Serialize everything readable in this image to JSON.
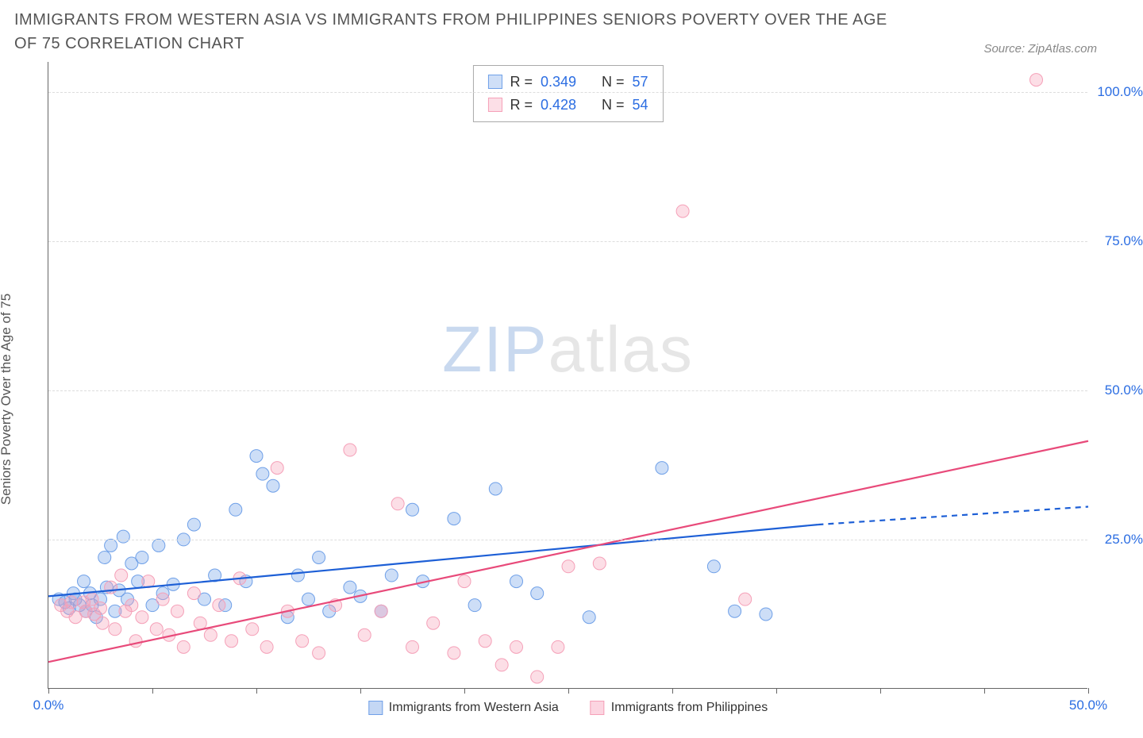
{
  "title": "IMMIGRANTS FROM WESTERN ASIA VS IMMIGRANTS FROM PHILIPPINES SENIORS POVERTY OVER THE AGE OF 75 CORRELATION CHART",
  "source": "Source: ZipAtlas.com",
  "watermark": {
    "zip": "ZIP",
    "atlas": "atlas"
  },
  "chart": {
    "type": "scatter",
    "background_color": "#ffffff",
    "grid_color": "#dddddd",
    "axis_color": "#666666",
    "tick_label_color": "#2b6de2",
    "ylabel": "Seniors Poverty Over the Age of 75",
    "ylabel_fontsize": 17,
    "xlim": [
      0,
      50
    ],
    "ylim": [
      0,
      105
    ],
    "xtick_positions": [
      0,
      5,
      10,
      15,
      20,
      25,
      30,
      35,
      40,
      45,
      50
    ],
    "xtick_labels": {
      "0": "0.0%",
      "50": "50.0%"
    },
    "ytick_positions": [
      25,
      50,
      75,
      100
    ],
    "ytick_labels": {
      "25": "25.0%",
      "50": "50.0%",
      "75": "75.0%",
      "100": "100.0%"
    },
    "marker_radius": 8,
    "marker_fill_opacity": 0.35,
    "marker_stroke_width": 1,
    "trend_line_width": 2.2,
    "series": [
      {
        "key": "western_asia",
        "label": "Immigrants from Western Asia",
        "color": "#6fa0e8",
        "line_color": "#1d5fd6",
        "R": "0.349",
        "N": "57",
        "trend": {
          "x1": 0,
          "y1": 15.5,
          "x2": 37,
          "y2": 27.5,
          "dash_start_x": 37,
          "dash_end_x": 50,
          "dash_end_y": 30.5
        },
        "points": [
          [
            0.5,
            15
          ],
          [
            0.8,
            14.5
          ],
          [
            1.0,
            13.5
          ],
          [
            1.2,
            16
          ],
          [
            1.3,
            15
          ],
          [
            1.5,
            14
          ],
          [
            1.7,
            18
          ],
          [
            1.8,
            13
          ],
          [
            2.0,
            16
          ],
          [
            2.1,
            14
          ],
          [
            2.3,
            12
          ],
          [
            2.5,
            15
          ],
          [
            2.7,
            22
          ],
          [
            2.8,
            17
          ],
          [
            3.0,
            24
          ],
          [
            3.2,
            13
          ],
          [
            3.4,
            16.5
          ],
          [
            3.6,
            25.5
          ],
          [
            3.8,
            15
          ],
          [
            4.0,
            21
          ],
          [
            4.3,
            18
          ],
          [
            4.5,
            22
          ],
          [
            5.0,
            14
          ],
          [
            5.3,
            24
          ],
          [
            5.5,
            16
          ],
          [
            6.0,
            17.5
          ],
          [
            6.5,
            25
          ],
          [
            7.0,
            27.5
          ],
          [
            7.5,
            15
          ],
          [
            8.0,
            19
          ],
          [
            8.5,
            14
          ],
          [
            9.0,
            30
          ],
          [
            9.5,
            18
          ],
          [
            10.0,
            39
          ],
          [
            10.3,
            36
          ],
          [
            10.8,
            34
          ],
          [
            11.5,
            12
          ],
          [
            12.0,
            19
          ],
          [
            12.5,
            15
          ],
          [
            13.0,
            22
          ],
          [
            13.5,
            13
          ],
          [
            14.5,
            17
          ],
          [
            15.0,
            15.5
          ],
          [
            16.0,
            13
          ],
          [
            16.5,
            19
          ],
          [
            17.5,
            30
          ],
          [
            18.0,
            18
          ],
          [
            19.5,
            28.5
          ],
          [
            20.5,
            14
          ],
          [
            21.5,
            33.5
          ],
          [
            22.5,
            18
          ],
          [
            23.5,
            16
          ],
          [
            26.0,
            12
          ],
          [
            29.5,
            37
          ],
          [
            32.0,
            20.5
          ],
          [
            33.0,
            13
          ],
          [
            34.5,
            12.5
          ]
        ]
      },
      {
        "key": "philippines",
        "label": "Immigrants from Philippines",
        "color": "#f5a0b8",
        "line_color": "#e84a7a",
        "R": "0.428",
        "N": "54",
        "trend": {
          "x1": 0,
          "y1": 4.5,
          "x2": 50,
          "y2": 41.5
        },
        "points": [
          [
            0.6,
            14
          ],
          [
            0.9,
            13
          ],
          [
            1.1,
            14.5
          ],
          [
            1.3,
            12
          ],
          [
            1.7,
            14.5
          ],
          [
            1.8,
            13
          ],
          [
            2.1,
            15
          ],
          [
            2.2,
            12.5
          ],
          [
            2.5,
            13.5
          ],
          [
            2.6,
            11
          ],
          [
            3.0,
            17
          ],
          [
            3.2,
            10
          ],
          [
            3.5,
            19
          ],
          [
            3.7,
            13
          ],
          [
            4.0,
            14
          ],
          [
            4.2,
            8
          ],
          [
            4.5,
            12
          ],
          [
            4.8,
            18
          ],
          [
            5.2,
            10
          ],
          [
            5.5,
            15
          ],
          [
            5.8,
            9
          ],
          [
            6.2,
            13
          ],
          [
            6.5,
            7
          ],
          [
            7.0,
            16
          ],
          [
            7.3,
            11
          ],
          [
            7.8,
            9
          ],
          [
            8.2,
            14
          ],
          [
            8.8,
            8
          ],
          [
            9.2,
            18.5
          ],
          [
            9.8,
            10
          ],
          [
            10.5,
            7
          ],
          [
            11.0,
            37
          ],
          [
            11.5,
            13
          ],
          [
            12.2,
            8
          ],
          [
            13.0,
            6
          ],
          [
            13.8,
            14
          ],
          [
            14.5,
            40
          ],
          [
            15.2,
            9
          ],
          [
            16.0,
            13
          ],
          [
            16.8,
            31
          ],
          [
            17.5,
            7
          ],
          [
            18.5,
            11
          ],
          [
            19.5,
            6
          ],
          [
            20.0,
            18
          ],
          [
            21.0,
            8
          ],
          [
            21.8,
            4
          ],
          [
            22.5,
            7
          ],
          [
            23.5,
            2
          ],
          [
            24.5,
            7
          ],
          [
            25.0,
            20.5
          ],
          [
            26.5,
            21
          ],
          [
            30.5,
            80
          ],
          [
            33.5,
            15
          ],
          [
            47.5,
            102
          ]
        ]
      }
    ],
    "legend_bottom": [
      {
        "swatch_fill": "#c4d7f4",
        "swatch_border": "#6fa0e8",
        "text": "Immigrants from Western Asia"
      },
      {
        "swatch_fill": "#fcd5e1",
        "swatch_border": "#f5a0b8",
        "text": "Immigrants from Philippines"
      }
    ]
  }
}
